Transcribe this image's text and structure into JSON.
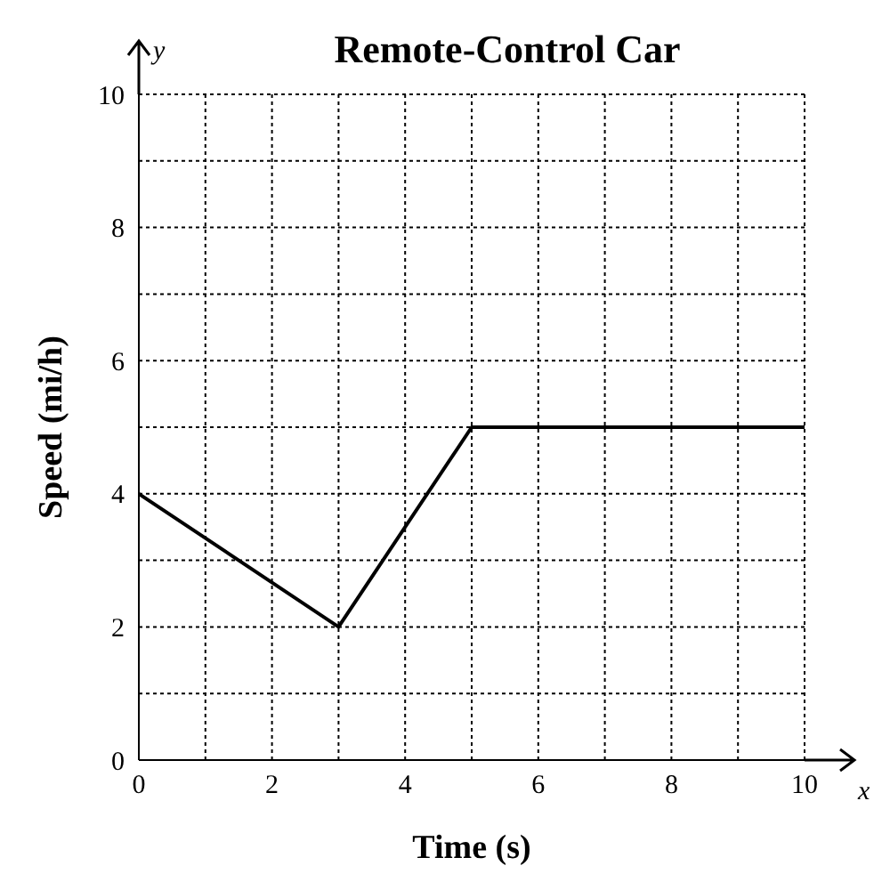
{
  "chart_data": {
    "type": "line",
    "title": "Remote-Control Car",
    "xlabel": "Time (s)",
    "ylabel": "Speed (mi/h)",
    "annotations": [
      "x",
      "y"
    ],
    "x": [
      0,
      3,
      5,
      10
    ],
    "series": [
      {
        "color": "#000000",
        "values": [
          4,
          2,
          5,
          5
        ]
      }
    ],
    "xlim": [
      0,
      10
    ],
    "ylim": [
      0,
      10
    ],
    "xticks": [
      0,
      {
        "value": 1,
        "label": null
      },
      2,
      {
        "value": 3,
        "label": null
      },
      4,
      {
        "value": 5,
        "label": null
      },
      6,
      {
        "value": 7,
        "label": null
      },
      8,
      {
        "value": 9,
        "label": null
      },
      10
    ],
    "yticks": [
      0,
      {
        "value": 1,
        "label": null
      },
      2,
      {
        "value": 3,
        "label": null
      },
      4,
      {
        "value": 5,
        "label": null
      },
      6,
      {
        "value": 7,
        "label": null
      },
      8,
      {
        "value": 9,
        "label": null
      },
      10
    ],
    "grid": true,
    "marker": "none",
    "line_style": "solid",
    "legend": false
  }
}
